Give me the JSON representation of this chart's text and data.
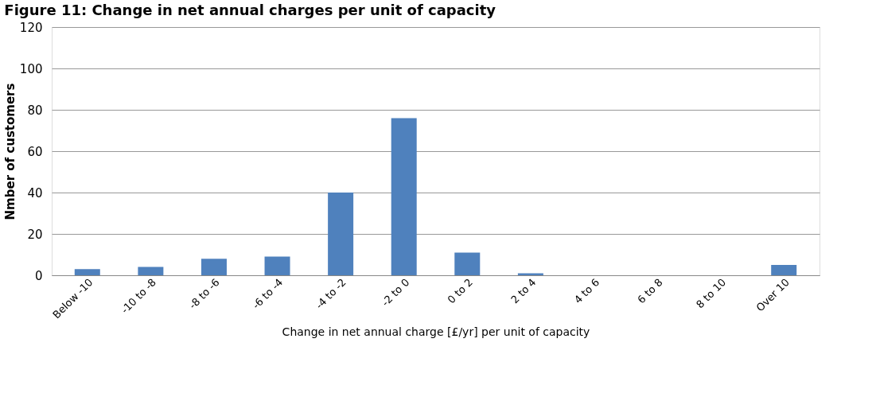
{
  "chart_data": {
    "type": "bar",
    "title": "Figure 11: Change in net annual charges per unit of capacity",
    "xlabel": "Change in net annual charge [£/yr] per  unit of capacity",
    "ylabel": "Nmber of customers",
    "categories": [
      "Below -10",
      "-10 to -8",
      "-8 to -6",
      "-6 to -4",
      "-4 to -2",
      "-2 to 0",
      "0 to 2",
      "2 to 4",
      "4 to 6",
      "6 to 8",
      "8 to 10",
      "Over 10"
    ],
    "values": [
      3,
      4,
      8,
      9,
      40,
      76,
      11,
      1,
      0,
      0,
      0,
      5
    ],
    "color": "#4f81bd",
    "ylim": [
      0,
      120
    ],
    "yticks": [
      0,
      20,
      40,
      60,
      80,
      100,
      120
    ],
    "grid": "y"
  }
}
